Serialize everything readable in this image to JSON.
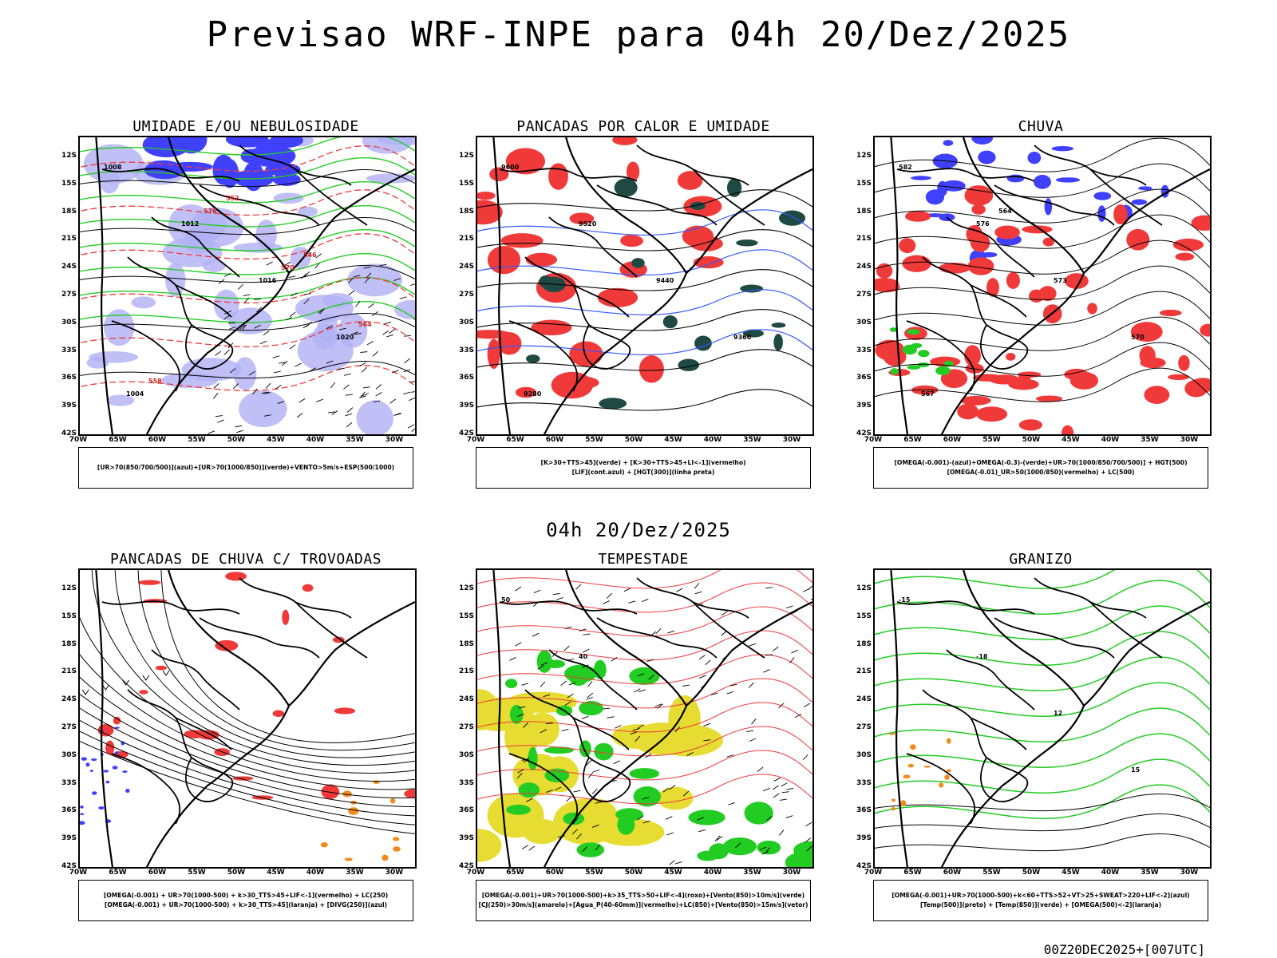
{
  "page_title": "Previsao WRF-INPE  para 04h 20/Dez/2025",
  "mid_title": "04h 20/Dez/2025",
  "footer": "00Z20DEC2025+[007UTC]",
  "y_ticks": [
    "12S",
    "15S",
    "18S",
    "21S",
    "24S",
    "27S",
    "30S",
    "33S",
    "36S",
    "39S",
    "42S"
  ],
  "x_ticks": [
    "70W",
    "65W",
    "60W",
    "55W",
    "50W",
    "45W",
    "40W",
    "35W",
    "30W"
  ],
  "colors": {
    "blue": "#4040ff",
    "lightblue": "#b0b0f5",
    "green": "#22cc22",
    "red": "#f03a3a",
    "darkteal": "#1f4a44",
    "yellow": "#e6dc32",
    "orange": "#f08c1e",
    "black": "#000000"
  },
  "panels": [
    {
      "id": "umidade",
      "title": "UMIDADE E/OU NEBULOSIDADE",
      "legend": [
        "[UR>70(850/700/500)](azul)+[UR>70(1000/850)](verde)+VENTO>5m/s+ESP(500/1000)"
      ],
      "labels": [
        "1008",
        "1012",
        "1016",
        "1020",
        "1004",
        "576",
        "570",
        "564",
        "558",
        "552",
        "546"
      ]
    },
    {
      "id": "pancadas-calor",
      "title": "PANCADAS POR CALOR E UMIDADE",
      "legend": [
        "[K>30+TTS>45](verde) + [K>30+TTS>45+LI<-1](vermelho)",
        "[LIF](cont.azul) + [HGT(300)](linha preta)"
      ],
      "labels": [
        "9600",
        "9520",
        "9440",
        "9360",
        "9280"
      ]
    },
    {
      "id": "chuva",
      "title": "CHUVA",
      "legend": [
        "[OMEGA(-0.001)-(azul)+OMEGA(-0.3)-(verde)+UR>70(1000/850/700/500)] + HGT(500)",
        "[OMEGA(-0.01)_UR>50(1000/850)(vermelho) + LC(500)"
      ],
      "labels": [
        "582",
        "576",
        "573",
        "570",
        "567",
        "564"
      ]
    },
    {
      "id": "trovoadas",
      "title": "PANCADAS DE CHUVA C/ TROVOADAS",
      "legend": [
        "[OMEGA(-0.001) + UR>70(1000-500) + k>30_TTS>45+LIF<-1](vermelho) + LC(250)",
        "[OMEGA(-0.001) + UR>70(1000-500) + k>30_TTS>45](laranja) + [DIVG(250)](azul)"
      ],
      "labels": []
    },
    {
      "id": "tempestade",
      "title": "TEMPESTADE",
      "legend": [
        "[OMEGA(-0.001)+UR>70(1000-500)+k>35_TTS>50+LIF<-4](roxo)+[Vento(850)>10m/s](verde)",
        "[CJ(250)>30m/s](amarelo)+[Agua_P(40-60mm)](vermelho)+LC(850)+[Vento(850)>15m/s](vetor)"
      ],
      "labels": [
        "50",
        "40"
      ]
    },
    {
      "id": "granizo",
      "title": "GRANIZO",
      "legend": [
        "[OMEGA(-0.001)+UR>70(1000-500)+k<60+TTS>52+VT>25+SWEAT>220+LIF<-2](azul)",
        "[Temp(500)](preto) + [Temp(850)](verde) + [OMEGA(500)<-2](laranja)"
      ],
      "labels": [
        "-15",
        "-18",
        "12",
        "15"
      ]
    }
  ]
}
